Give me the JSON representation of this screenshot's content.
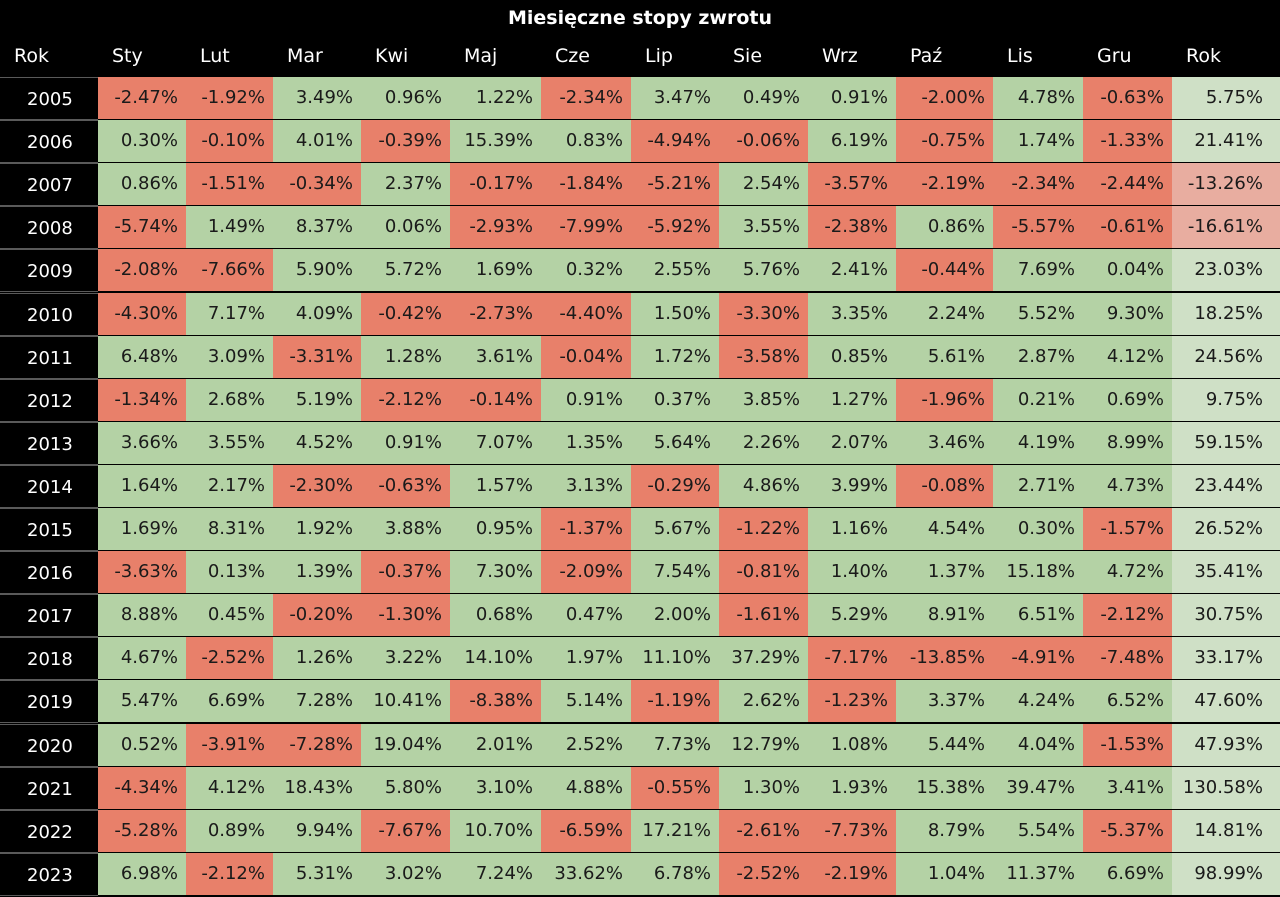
{
  "title": "Miesięczne stopy zwrotu",
  "headers": [
    "Rok",
    "Sty",
    "Lut",
    "Mar",
    "Kwi",
    "Maj",
    "Cze",
    "Lip",
    "Sie",
    "Wrz",
    "Paź",
    "Lis",
    "Gru",
    "Rok"
  ],
  "colors": {
    "background": "#000000",
    "positive": "#b4d2a5",
    "negative": "#e8806a",
    "annual_positive": "#cfe0c6",
    "annual_negative": "#e8ada0"
  },
  "chart_data": {
    "type": "heatmap",
    "title": "Miesięczne stopy zwrotu",
    "row_header": "Rok",
    "columns": [
      "Sty",
      "Lut",
      "Mar",
      "Kwi",
      "Maj",
      "Cze",
      "Lip",
      "Sie",
      "Wrz",
      "Paź",
      "Lis",
      "Gru",
      "Rok"
    ],
    "rows": [
      {
        "year": "2005",
        "cells": [
          "-2.47%",
          "-1.92%",
          "3.49%",
          "0.96%",
          "1.22%",
          "-2.34%",
          "3.47%",
          "0.49%",
          "0.91%",
          "-2.00%",
          "4.78%",
          "-0.63%",
          "5.75%"
        ]
      },
      {
        "year": "2006",
        "cells": [
          "0.30%",
          "-0.10%",
          "4.01%",
          "-0.39%",
          "15.39%",
          "0.83%",
          "-4.94%",
          "-0.06%",
          "6.19%",
          "-0.75%",
          "1.74%",
          "-1.33%",
          "21.41%"
        ]
      },
      {
        "year": "2007",
        "cells": [
          "0.86%",
          "-1.51%",
          "-0.34%",
          "2.37%",
          "-0.17%",
          "-1.84%",
          "-5.21%",
          "2.54%",
          "-3.57%",
          "-2.19%",
          "-2.34%",
          "-2.44%",
          "-13.26%"
        ]
      },
      {
        "year": "2008",
        "cells": [
          "-5.74%",
          "1.49%",
          "8.37%",
          "0.06%",
          "-2.93%",
          "-7.99%",
          "-5.92%",
          "3.55%",
          "-2.38%",
          "0.86%",
          "-5.57%",
          "-0.61%",
          "-16.61%"
        ]
      },
      {
        "year": "2009",
        "cells": [
          "-2.08%",
          "-7.66%",
          "5.90%",
          "5.72%",
          "1.69%",
          "0.32%",
          "2.55%",
          "5.76%",
          "2.41%",
          "-0.44%",
          "7.69%",
          "0.04%",
          "23.03%"
        ]
      },
      {
        "year": "2010",
        "cells": [
          "-4.30%",
          "7.17%",
          "4.09%",
          "-0.42%",
          "-2.73%",
          "-4.40%",
          "1.50%",
          "-3.30%",
          "3.35%",
          "2.24%",
          "5.52%",
          "9.30%",
          "18.25%"
        ]
      },
      {
        "year": "2011",
        "cells": [
          "6.48%",
          "3.09%",
          "-3.31%",
          "1.28%",
          "3.61%",
          "-0.04%",
          "1.72%",
          "-3.58%",
          "0.85%",
          "5.61%",
          "2.87%",
          "4.12%",
          "24.56%"
        ]
      },
      {
        "year": "2012",
        "cells": [
          "-1.34%",
          "2.68%",
          "5.19%",
          "-2.12%",
          "-0.14%",
          "0.91%",
          "0.37%",
          "3.85%",
          "1.27%",
          "-1.96%",
          "0.21%",
          "0.69%",
          "9.75%"
        ]
      },
      {
        "year": "2013",
        "cells": [
          "3.66%",
          "3.55%",
          "4.52%",
          "0.91%",
          "7.07%",
          "1.35%",
          "5.64%",
          "2.26%",
          "2.07%",
          "3.46%",
          "4.19%",
          "8.99%",
          "59.15%"
        ]
      },
      {
        "year": "2014",
        "cells": [
          "1.64%",
          "2.17%",
          "-2.30%",
          "-0.63%",
          "1.57%",
          "3.13%",
          "-0.29%",
          "4.86%",
          "3.99%",
          "-0.08%",
          "2.71%",
          "4.73%",
          "23.44%"
        ]
      },
      {
        "year": "2015",
        "cells": [
          "1.69%",
          "8.31%",
          "1.92%",
          "3.88%",
          "0.95%",
          "-1.37%",
          "5.67%",
          "-1.22%",
          "1.16%",
          "4.54%",
          "0.30%",
          "-1.57%",
          "26.52%"
        ]
      },
      {
        "year": "2016",
        "cells": [
          "-3.63%",
          "0.13%",
          "1.39%",
          "-0.37%",
          "7.30%",
          "-2.09%",
          "7.54%",
          "-0.81%",
          "1.40%",
          "1.37%",
          "15.18%",
          "4.72%",
          "35.41%"
        ]
      },
      {
        "year": "2017",
        "cells": [
          "8.88%",
          "0.45%",
          "-0.20%",
          "-1.30%",
          "0.68%",
          "0.47%",
          "2.00%",
          "-1.61%",
          "5.29%",
          "8.91%",
          "6.51%",
          "-2.12%",
          "30.75%"
        ]
      },
      {
        "year": "2018",
        "cells": [
          "4.67%",
          "-2.52%",
          "1.26%",
          "3.22%",
          "14.10%",
          "1.97%",
          "11.10%",
          "37.29%",
          "-7.17%",
          "-13.85%",
          "-4.91%",
          "-7.48%",
          "33.17%"
        ]
      },
      {
        "year": "2019",
        "cells": [
          "5.47%",
          "6.69%",
          "7.28%",
          "10.41%",
          "-8.38%",
          "5.14%",
          "-1.19%",
          "2.62%",
          "-1.23%",
          "3.37%",
          "4.24%",
          "6.52%",
          "47.60%"
        ]
      },
      {
        "year": "2020",
        "cells": [
          "0.52%",
          "-3.91%",
          "-7.28%",
          "19.04%",
          "2.01%",
          "2.52%",
          "7.73%",
          "12.79%",
          "1.08%",
          "5.44%",
          "4.04%",
          "-1.53%",
          "47.93%"
        ]
      },
      {
        "year": "2021",
        "cells": [
          "-4.34%",
          "4.12%",
          "18.43%",
          "5.80%",
          "3.10%",
          "4.88%",
          "-0.55%",
          "1.30%",
          "1.93%",
          "15.38%",
          "39.47%",
          "3.41%",
          "130.58%"
        ]
      },
      {
        "year": "2022",
        "cells": [
          "-5.28%",
          "0.89%",
          "9.94%",
          "-7.67%",
          "10.70%",
          "-6.59%",
          "17.21%",
          "-2.61%",
          "-7.73%",
          "8.79%",
          "5.54%",
          "-5.37%",
          "14.81%"
        ]
      },
      {
        "year": "2023",
        "cells": [
          "6.98%",
          "-2.12%",
          "5.31%",
          "3.02%",
          "7.24%",
          "33.62%",
          "6.78%",
          "-2.52%",
          "-2.19%",
          "1.04%",
          "11.37%",
          "6.69%",
          "98.99%"
        ]
      }
    ]
  }
}
